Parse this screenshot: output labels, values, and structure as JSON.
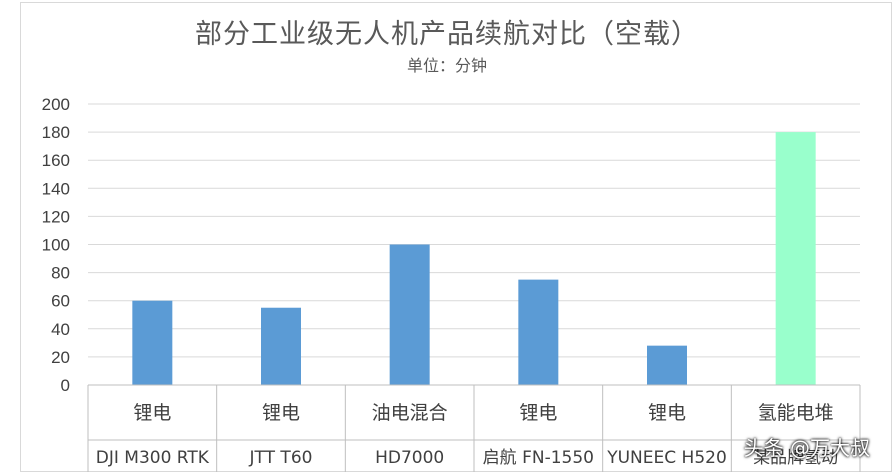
{
  "chart_data": {
    "type": "bar",
    "title": "部分工业级无人机产品续航对比（空载）",
    "subtitle": "单位：分钟",
    "ylim": [
      0,
      200
    ],
    "yticks": [
      0,
      20,
      40,
      60,
      80,
      100,
      120,
      140,
      160,
      180,
      200
    ],
    "grid": true,
    "categories": [
      {
        "group": "锂电",
        "name": "DJI M300 RTK"
      },
      {
        "group": "锂电",
        "name": "JTT T60"
      },
      {
        "group": "油电混合",
        "name": "HD7000"
      },
      {
        "group": "锂电",
        "name": "启航 FN-1550"
      },
      {
        "group": "锂电",
        "name": "YUNEEC H520"
      },
      {
        "group": "氢能电堆",
        "name": "某品牌氢动"
      }
    ],
    "values": [
      60,
      55,
      100,
      75,
      28,
      180
    ],
    "colors": [
      "#5b9bd5",
      "#5b9bd5",
      "#5b9bd5",
      "#5b9bd5",
      "#5b9bd5",
      "#99ffcc"
    ]
  },
  "watermark": "头条 @万大叔"
}
